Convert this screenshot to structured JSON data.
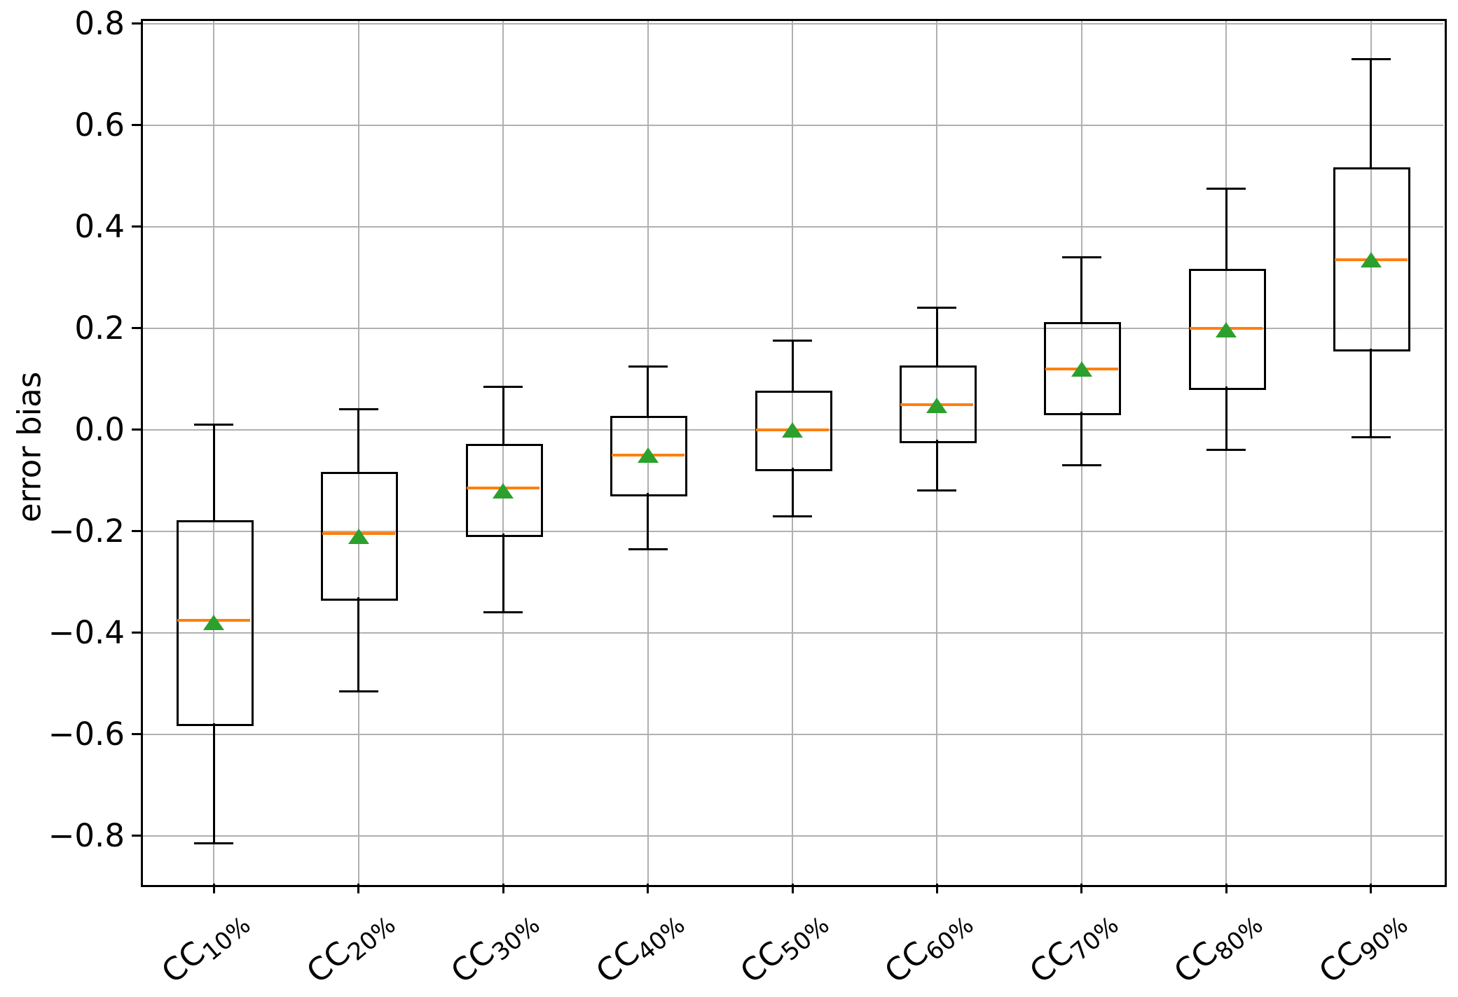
{
  "figure": {
    "background": "#ffffff"
  },
  "chart_data": {
    "type": "box",
    "title": "",
    "xlabel": "",
    "ylabel": "error bias",
    "grid": true,
    "legend": false,
    "ylim": [
      -0.894,
      0.808
    ],
    "yticks": [
      0.8,
      0.6,
      0.4,
      0.2,
      0.0,
      -0.2,
      -0.4,
      -0.6,
      -0.8
    ],
    "ytick_labels": [
      "0.8",
      "0.6",
      "0.4",
      "0.2",
      "0.0",
      "−0.2",
      "−0.4",
      "−0.6",
      "−0.8"
    ],
    "categories": [
      "CC10%",
      "CC20%",
      "CC30%",
      "CC40%",
      "CC50%",
      "CC60%",
      "CC70%",
      "CC80%",
      "CC90%"
    ],
    "category_labels": [
      {
        "base": "CC",
        "sub": "10%"
      },
      {
        "base": "CC",
        "sub": "20%"
      },
      {
        "base": "CC",
        "sub": "30%"
      },
      {
        "base": "CC",
        "sub": "40%"
      },
      {
        "base": "CC",
        "sub": "50%"
      },
      {
        "base": "CC",
        "sub": "60%"
      },
      {
        "base": "CC",
        "sub": "70%"
      },
      {
        "base": "CC",
        "sub": "80%"
      },
      {
        "base": "CC",
        "sub": "90%"
      }
    ],
    "series": [
      {
        "label": "CC10%",
        "whislo": -0.815,
        "q1": -0.578,
        "med": -0.375,
        "mean": -0.38,
        "q3": -0.18,
        "whishi": 0.01
      },
      {
        "label": "CC20%",
        "whislo": -0.515,
        "q1": -0.33,
        "med": -0.205,
        "mean": -0.21,
        "q3": -0.085,
        "whishi": 0.04
      },
      {
        "label": "CC30%",
        "whislo": -0.36,
        "q1": -0.205,
        "med": -0.115,
        "mean": -0.12,
        "q3": -0.03,
        "whishi": 0.085
      },
      {
        "label": "CC40%",
        "whislo": -0.235,
        "q1": -0.125,
        "med": -0.05,
        "mean": -0.05,
        "q3": 0.025,
        "whishi": 0.125
      },
      {
        "label": "CC50%",
        "whislo": -0.17,
        "q1": -0.075,
        "med": 0.0,
        "mean": 0.0,
        "q3": 0.075,
        "whishi": 0.175
      },
      {
        "label": "CC60%",
        "whislo": -0.12,
        "q1": -0.02,
        "med": 0.05,
        "mean": 0.048,
        "q3": 0.125,
        "whishi": 0.24
      },
      {
        "label": "CC70%",
        "whislo": -0.07,
        "q1": 0.035,
        "med": 0.12,
        "mean": 0.12,
        "q3": 0.21,
        "whishi": 0.34
      },
      {
        "label": "CC80%",
        "whislo": -0.04,
        "q1": 0.085,
        "med": 0.2,
        "mean": 0.197,
        "q3": 0.315,
        "whishi": 0.475
      },
      {
        "label": "CC90%",
        "whislo": -0.015,
        "q1": 0.16,
        "med": 0.335,
        "mean": 0.335,
        "q3": 0.515,
        "whishi": 0.73
      }
    ],
    "colors": {
      "median": "#ff7f0e",
      "mean": "#2ca02c",
      "line": "#000000",
      "grid": "#b0b0b0",
      "background": "#ffffff"
    }
  }
}
